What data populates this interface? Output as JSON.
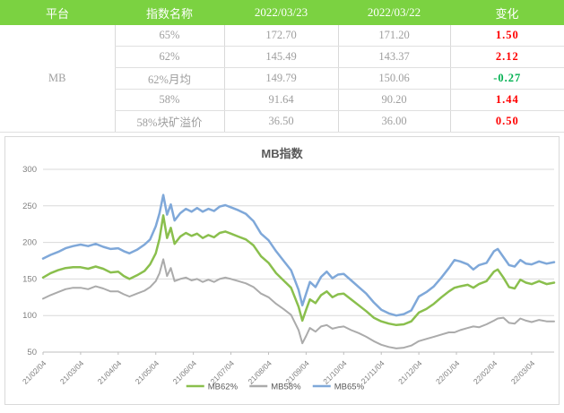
{
  "table": {
    "headers": [
      "平台",
      "指数名称",
      "2022/03/23",
      "2022/03/22",
      "变化"
    ],
    "platform": "MB",
    "rows": [
      {
        "name": "65%",
        "today": "172.70",
        "yesterday": "171.20",
        "change": "1.50"
      },
      {
        "name": "62%",
        "today": "145.49",
        "yesterday": "143.37",
        "change": "2.12"
      },
      {
        "name": "62%月均",
        "today": "149.79",
        "yesterday": "150.06",
        "change": "-0.27"
      },
      {
        "name": "58%",
        "today": "91.64",
        "yesterday": "90.20",
        "change": "1.44"
      },
      {
        "name": "58%块矿溢价",
        "today": "36.50",
        "yesterday": "36.00",
        "change": "0.50"
      }
    ]
  },
  "colors": {
    "header_bg": "#7bd241",
    "header_text": "#ffffff",
    "table_text": "#9e9e9e",
    "positive_change": "#ff0000",
    "negative_change": "#00b050",
    "border": "#d9d9d9",
    "axis": "#bfbfbf",
    "grid": "#d9d9d9",
    "axis_text": "#808080",
    "title_text": "#595959"
  },
  "chart_data": {
    "type": "line",
    "title": "MB指数",
    "grid": true,
    "legend_position": "bottom",
    "x_axis": {
      "tick_labels": [
        "21/02/04",
        "21/03/04",
        "21/04/04",
        "21/05/04",
        "21/06/04",
        "21/07/04",
        "21/08/04",
        "21/09/04",
        "21/10/04",
        "21/11/04",
        "21/12/04",
        "22/01/04",
        "22/02/04",
        "22/03/04"
      ],
      "range_months": [
        0,
        13.6
      ]
    },
    "y_axis": {
      "ticks": [
        50,
        100,
        150,
        200,
        250,
        300
      ],
      "range": [
        50,
        300
      ]
    },
    "x_months": [
      0,
      0.2,
      0.4,
      0.6,
      0.8,
      1.0,
      1.2,
      1.4,
      1.6,
      1.8,
      2.0,
      2.15,
      2.3,
      2.5,
      2.7,
      2.85,
      3.0,
      3.1,
      3.2,
      3.3,
      3.4,
      3.5,
      3.65,
      3.8,
      3.95,
      4.1,
      4.25,
      4.4,
      4.55,
      4.7,
      4.85,
      5.0,
      5.2,
      5.4,
      5.6,
      5.8,
      6.0,
      6.2,
      6.4,
      6.6,
      6.8,
      6.9,
      7.0,
      7.1,
      7.25,
      7.4,
      7.55,
      7.7,
      7.85,
      8.0,
      8.2,
      8.4,
      8.6,
      8.8,
      9.0,
      9.2,
      9.4,
      9.6,
      9.8,
      10.0,
      10.2,
      10.4,
      10.6,
      10.8,
      10.95,
      11.1,
      11.3,
      11.45,
      11.6,
      11.8,
      12.0,
      12.1,
      12.25,
      12.4,
      12.55,
      12.7,
      12.85,
      13.0,
      13.2,
      13.4,
      13.6
    ],
    "series": [
      {
        "name": "MB62%",
        "color": "#8abf4d",
        "width": 2.5,
        "values": [
          152,
          158,
          162,
          165,
          166,
          166,
          164,
          167,
          164,
          159,
          160,
          154,
          150,
          155,
          161,
          170,
          185,
          205,
          237,
          206,
          220,
          198,
          208,
          213,
          209,
          212,
          206,
          210,
          207,
          213,
          215,
          212,
          208,
          204,
          196,
          181,
          172,
          158,
          148,
          138,
          112,
          93,
          108,
          122,
          117,
          128,
          133,
          125,
          129,
          130,
          122,
          114,
          106,
          97,
          92,
          89,
          87,
          88,
          92,
          104,
          109,
          116,
          125,
          133,
          138,
          140,
          142,
          138,
          143,
          147,
          160,
          163,
          152,
          139,
          137,
          149,
          145,
          143,
          147,
          143,
          145
        ]
      },
      {
        "name": "MB58%",
        "color": "#ababab",
        "width": 2,
        "values": [
          123,
          128,
          132,
          136,
          138,
          138,
          136,
          140,
          137,
          133,
          133,
          129,
          126,
          130,
          134,
          139,
          147,
          158,
          177,
          154,
          165,
          147,
          150,
          152,
          148,
          150,
          146,
          149,
          146,
          150,
          152,
          150,
          147,
          144,
          139,
          130,
          125,
          116,
          109,
          101,
          80,
          62,
          72,
          83,
          78,
          85,
          87,
          82,
          84,
          85,
          80,
          76,
          71,
          65,
          60,
          57,
          55,
          56,
          59,
          65,
          68,
          71,
          74,
          77,
          77,
          80,
          83,
          85,
          84,
          88,
          93,
          96,
          97,
          90,
          89,
          96,
          93,
          91,
          94,
          92,
          92
        ]
      },
      {
        "name": "MB65%",
        "color": "#7fa8d9",
        "width": 2.5,
        "values": [
          178,
          183,
          187,
          192,
          195,
          197,
          195,
          198,
          194,
          191,
          192,
          188,
          185,
          190,
          197,
          204,
          222,
          240,
          265,
          238,
          252,
          230,
          240,
          246,
          242,
          247,
          242,
          246,
          243,
          249,
          251,
          248,
          244,
          239,
          229,
          212,
          203,
          188,
          175,
          162,
          135,
          114,
          130,
          146,
          139,
          153,
          160,
          151,
          156,
          157,
          148,
          139,
          130,
          118,
          108,
          103,
          100,
          102,
          107,
          126,
          132,
          140,
          152,
          165,
          176,
          174,
          170,
          163,
          169,
          172,
          188,
          191,
          180,
          169,
          167,
          176,
          171,
          170,
          174,
          171,
          173
        ]
      }
    ],
    "legend_order": [
      "MB62%",
      "MB58%",
      "MB65%"
    ]
  }
}
